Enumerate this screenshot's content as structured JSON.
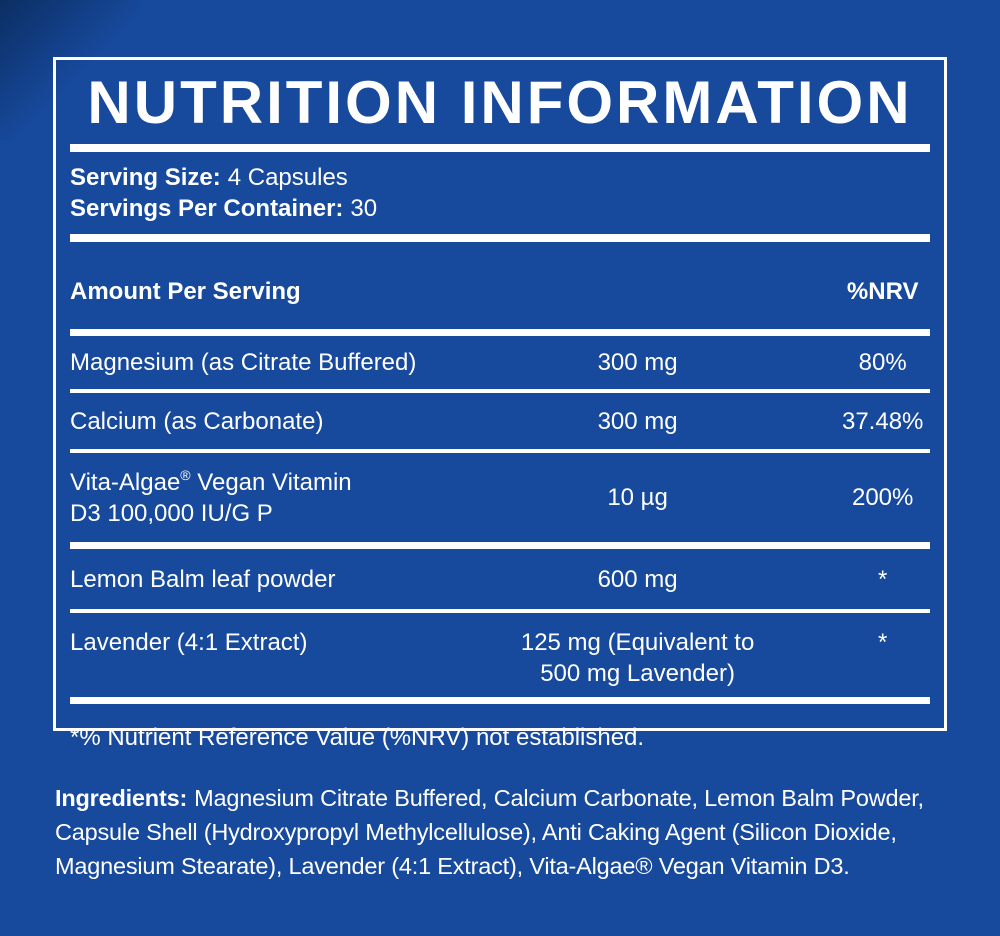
{
  "colors": {
    "background": "#17499c",
    "panel_border": "#ffffff",
    "text": "#ffffff",
    "corner_shade": "#092855"
  },
  "panel": {
    "title": "NUTRITION INFORMATION",
    "serving": {
      "size_label": "Serving Size:",
      "size_value": "4 Capsules",
      "per_container_label": "Servings Per Container:",
      "per_container_value": "30"
    },
    "table": {
      "header": {
        "amount_per_serving": "Amount Per Serving",
        "nrv": "%NRV"
      },
      "rows": [
        {
          "name": "Magnesium (as Citrate Buffered)",
          "amount": "300 mg",
          "nrv": "80%"
        },
        {
          "name": "Calcium (as Carbonate)",
          "amount": "300 mg",
          "nrv": "37.48%"
        },
        {
          "name_line1_pre": "Vita-Algae",
          "name_line1_reg": "®",
          "name_line1_post": " Vegan Vitamin",
          "name_line2": "D3 100,000 IU/G P",
          "amount": "10 µg",
          "nrv": "200%"
        },
        {
          "name": "Lemon Balm leaf powder",
          "amount": "600 mg",
          "nrv": "*"
        },
        {
          "name": "Lavender (4:1 Extract)",
          "amount_line1": "125 mg (Equivalent to",
          "amount_line2": "500 mg Lavender)",
          "nrv": "*"
        }
      ]
    },
    "footnote": "*% Nutrient Reference Value (%NRV) not established."
  },
  "ingredients": {
    "label": "Ingredients:",
    "line1_rest": "Magnesium Citrate Buffered, Calcium Carbonate, Lemon Balm Powder,",
    "line2": "Capsule Shell (Hydroxypropyl Methylcellulose), Anti Caking Agent (Silicon Dioxide,",
    "line3": "Magnesium Stearate), Lavender (4:1 Extract), Vita-Algae® Vegan Vitamin D3."
  }
}
